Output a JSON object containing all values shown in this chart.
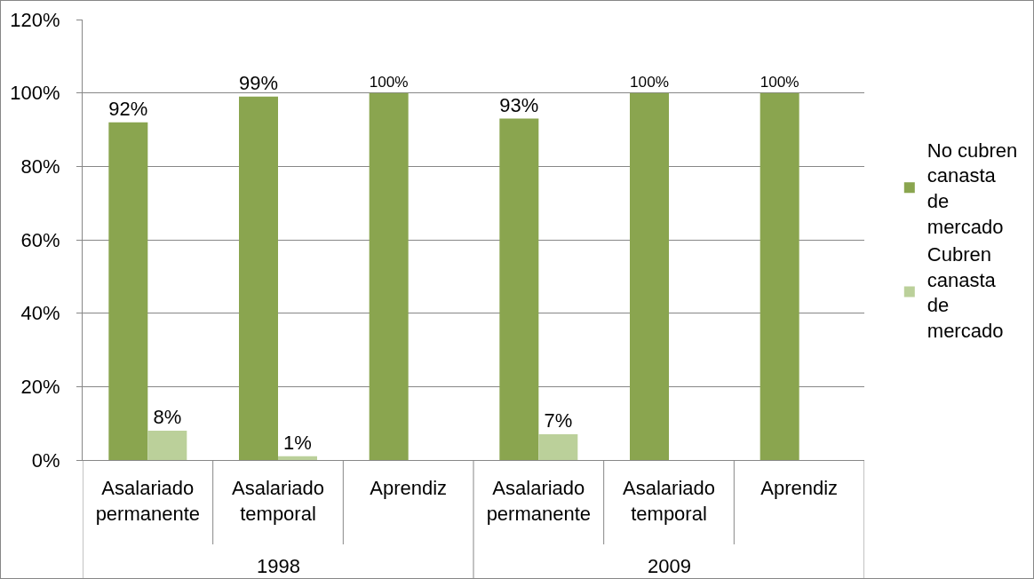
{
  "chart_data": {
    "type": "bar",
    "categories": [
      "Asalariado permanente",
      "Asalariado temporal",
      "Aprendiz",
      "Asalariado permanente",
      "Asalariado temporal",
      "Aprendiz"
    ],
    "series": [
      {
        "name": "No cubren canasta de mercado",
        "color": "#8aa54f",
        "values": [
          92,
          99,
          100,
          93,
          100,
          100
        ],
        "value_labels": [
          "92%",
          "99%",
          "100%",
          "93%",
          "100%",
          "100%"
        ]
      },
      {
        "name": "Cubren canasta de mercado",
        "color": "#bbd09a",
        "values": [
          8,
          1,
          0,
          7,
          0,
          0
        ],
        "value_labels": [
          "8%",
          "1%",
          null,
          "7%",
          null,
          null
        ]
      }
    ],
    "annotations": [
      "1998",
      "2009"
    ],
    "ylim": [
      0,
      120
    ],
    "yticks": [
      {
        "value": 0,
        "label": "0%"
      },
      {
        "value": 20,
        "label": "20%"
      },
      {
        "value": 40,
        "label": "40%"
      },
      {
        "value": 60,
        "label": "60%"
      },
      {
        "value": 80,
        "label": "80%"
      },
      {
        "value": 100,
        "label": "100%"
      },
      {
        "value": 120,
        "label": "120%"
      }
    ],
    "grid": "y",
    "legend": "right"
  }
}
